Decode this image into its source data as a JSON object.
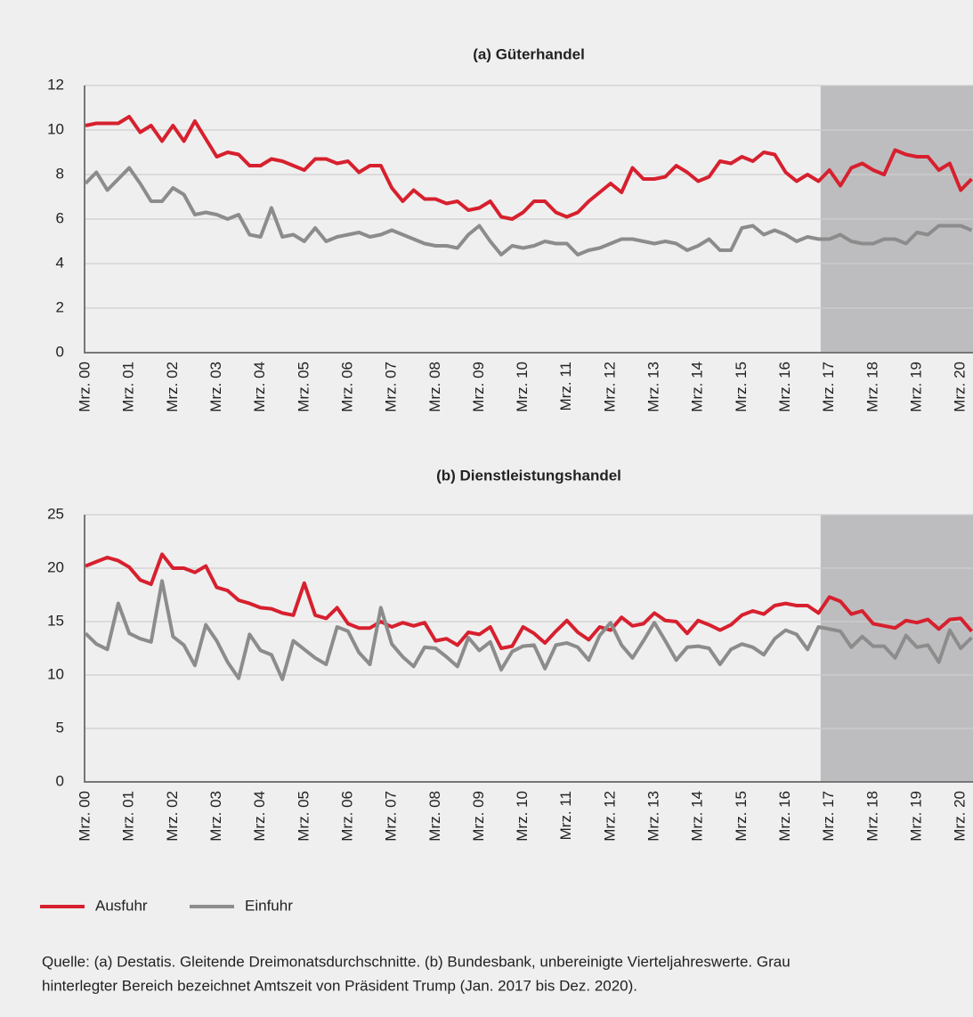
{
  "chart_data": [
    {
      "type": "line",
      "title": "(a) Güterhandel",
      "categories": [
        "Mrz. 00",
        null,
        null,
        null,
        "Mrz. 01",
        null,
        null,
        null,
        "Mrz. 02",
        null,
        null,
        null,
        "Mrz. 03",
        null,
        null,
        null,
        "Mrz. 04",
        null,
        null,
        null,
        "Mrz. 05",
        null,
        null,
        null,
        "Mrz. 06",
        null,
        null,
        null,
        "Mrz. 07",
        null,
        null,
        null,
        "Mrz. 08",
        null,
        null,
        null,
        "Mrz. 09",
        null,
        null,
        null,
        "Mrz. 10",
        null,
        null,
        null,
        "Mrz. 11",
        null,
        null,
        null,
        "Mrz. 12",
        null,
        null,
        null,
        "Mrz. 13",
        null,
        null,
        null,
        "Mrz. 14",
        null,
        null,
        null,
        "Mrz. 15",
        null,
        null,
        null,
        "Mrz. 16",
        null,
        null,
        null,
        "Mrz. 17",
        null,
        null,
        null,
        "Mrz. 18",
        null,
        null,
        null,
        "Mrz. 19",
        null,
        null,
        null,
        "Mrz. 20",
        null
      ],
      "series": [
        {
          "name": "Ausfuhr",
          "color": "#d7202e",
          "values": [
            10.2,
            10.3,
            10.3,
            10.3,
            10.6,
            9.9,
            10.2,
            9.5,
            10.2,
            9.5,
            10.4,
            9.6,
            8.8,
            9.0,
            8.9,
            8.4,
            8.4,
            8.7,
            8.6,
            8.4,
            8.2,
            8.7,
            8.7,
            8.5,
            8.6,
            8.1,
            8.4,
            8.4,
            7.4,
            6.8,
            7.3,
            6.9,
            6.9,
            6.7,
            6.8,
            6.4,
            6.5,
            6.8,
            6.1,
            6.0,
            6.3,
            6.8,
            6.8,
            6.3,
            6.1,
            6.3,
            6.8,
            7.2,
            7.6,
            7.2,
            8.3,
            7.8,
            7.8,
            7.9,
            8.4,
            8.1,
            7.7,
            7.9,
            8.6,
            8.5,
            8.8,
            8.6,
            9.0,
            8.9,
            8.1,
            7.7,
            8.0,
            7.7,
            8.2,
            7.5,
            8.3,
            8.5,
            8.2,
            8.0,
            9.1,
            8.9,
            8.8,
            8.8,
            8.2,
            8.5,
            7.3,
            7.8
          ]
        },
        {
          "name": "Einfuhr",
          "color": "#8c8c8c",
          "values": [
            7.6,
            8.1,
            7.3,
            7.8,
            8.3,
            7.6,
            6.8,
            6.8,
            7.4,
            7.1,
            6.2,
            6.3,
            6.2,
            6.0,
            6.2,
            5.3,
            5.2,
            6.5,
            5.2,
            5.3,
            5.0,
            5.6,
            5.0,
            5.2,
            5.3,
            5.4,
            5.2,
            5.3,
            5.5,
            5.3,
            5.1,
            4.9,
            4.8,
            4.8,
            4.7,
            5.3,
            5.7,
            5.0,
            4.4,
            4.8,
            4.7,
            4.8,
            5.0,
            4.9,
            4.9,
            4.4,
            4.6,
            4.7,
            4.9,
            5.1,
            5.1,
            5.0,
            4.9,
            5.0,
            4.9,
            4.6,
            4.8,
            5.1,
            4.6,
            4.6,
            5.6,
            5.7,
            5.3,
            5.5,
            5.3,
            5.0,
            5.2,
            5.1,
            5.1,
            5.3,
            5.0,
            4.9,
            4.9,
            5.1,
            5.1,
            4.9,
            5.4,
            5.3,
            5.7,
            5.7,
            5.7,
            5.5
          ]
        }
      ],
      "ylim": [
        0,
        12
      ],
      "yticks": [
        0,
        2,
        4,
        6,
        8,
        10,
        12
      ],
      "grid": true,
      "shaded_from": "Mrz. 17"
    },
    {
      "type": "line",
      "title": "(b) Dienstleistungshandel",
      "categories": [
        "Mrz. 00",
        null,
        null,
        null,
        "Mrz. 01",
        null,
        null,
        null,
        "Mrz. 02",
        null,
        null,
        null,
        "Mrz. 03",
        null,
        null,
        null,
        "Mrz. 04",
        null,
        null,
        null,
        "Mrz. 05",
        null,
        null,
        null,
        "Mrz. 06",
        null,
        null,
        null,
        "Mrz. 07",
        null,
        null,
        null,
        "Mrz. 08",
        null,
        null,
        null,
        "Mrz. 09",
        null,
        null,
        null,
        "Mrz. 10",
        null,
        null,
        null,
        "Mrz. 11",
        null,
        null,
        null,
        "Mrz. 12",
        null,
        null,
        null,
        "Mrz. 13",
        null,
        null,
        null,
        "Mrz. 14",
        null,
        null,
        null,
        "Mrz. 15",
        null,
        null,
        null,
        "Mrz. 16",
        null,
        null,
        null,
        "Mrz. 17",
        null,
        null,
        null,
        "Mrz. 18",
        null,
        null,
        null,
        "Mrz. 19",
        null,
        null,
        null,
        "Mrz. 20",
        null
      ],
      "series": [
        {
          "name": "Ausfuhr",
          "color": "#d7202e",
          "values": [
            20.2,
            20.6,
            21.0,
            20.7,
            20.1,
            18.9,
            18.5,
            21.3,
            20.0,
            20.0,
            19.6,
            20.2,
            18.2,
            17.9,
            17.0,
            16.7,
            16.3,
            16.2,
            15.8,
            15.6,
            18.6,
            15.6,
            15.3,
            16.3,
            14.8,
            14.4,
            14.4,
            15.0,
            14.5,
            14.9,
            14.6,
            14.9,
            13.2,
            13.4,
            12.8,
            14.0,
            13.8,
            14.5,
            12.5,
            12.7,
            14.5,
            13.9,
            13.0,
            14.1,
            15.1,
            14.0,
            13.3,
            14.5,
            14.2,
            15.4,
            14.6,
            14.8,
            15.8,
            15.1,
            15.0,
            13.9,
            15.1,
            14.7,
            14.2,
            14.7,
            15.6,
            16.0,
            15.7,
            16.5,
            16.7,
            16.5,
            16.5,
            15.8,
            17.3,
            16.9,
            15.7,
            16.0,
            14.8,
            14.6,
            14.4,
            15.1,
            14.9,
            15.2,
            14.3,
            15.2,
            15.3,
            14.1
          ]
        },
        {
          "name": "Einfuhr",
          "color": "#8c8c8c",
          "values": [
            13.9,
            12.9,
            12.4,
            16.7,
            13.9,
            13.4,
            13.1,
            18.8,
            13.6,
            12.8,
            10.9,
            14.7,
            13.2,
            11.2,
            9.7,
            13.8,
            12.3,
            11.9,
            9.6,
            13.2,
            12.4,
            11.6,
            11.0,
            14.5,
            14.1,
            12.1,
            11.0,
            16.3,
            12.9,
            11.7,
            10.8,
            12.6,
            12.5,
            11.7,
            10.8,
            13.5,
            12.3,
            13.1,
            10.5,
            12.2,
            12.7,
            12.8,
            10.6,
            12.8,
            13.0,
            12.6,
            11.4,
            13.7,
            14.9,
            12.8,
            11.6,
            13.2,
            14.9,
            13.2,
            11.4,
            12.6,
            12.7,
            12.5,
            11.0,
            12.4,
            12.9,
            12.6,
            11.9,
            13.4,
            14.2,
            13.8,
            12.4,
            14.5,
            14.3,
            14.1,
            12.6,
            13.6,
            12.7,
            12.7,
            11.6,
            13.7,
            12.6,
            12.8,
            11.2,
            14.2,
            12.5,
            13.5
          ]
        }
      ],
      "ylim": [
        0,
        25
      ],
      "yticks": [
        0,
        5,
        10,
        15,
        20,
        25
      ],
      "grid": true,
      "shaded_from": "Mrz. 17"
    }
  ],
  "source": [
    "Quelle: (a) Destatis. Gleitende Dreimonatsdurchschnitte. (b) Bundesbank, unbereinigte Vierteljahreswerte. Grau",
    "hinterlegter Bereich bezeichnet Amtszeit von Präsident Trump (Jan. 2017 bis Dez. 2020)."
  ]
}
